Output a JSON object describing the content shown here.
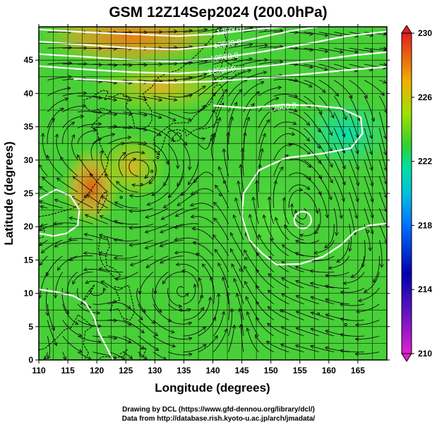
{
  "chart_data": {
    "type": "heatmap",
    "title": "GSM 12Z14Sep2024 (200.0hPa)",
    "xlabel": "Longitude (degrees)",
    "ylabel": "Latitude  (degrees)",
    "xlim": [
      110,
      170
    ],
    "ylim": [
      0,
      50
    ],
    "x_ticks": [
      110,
      115,
      120,
      125,
      130,
      135,
      140,
      145,
      150,
      155,
      160,
      165
    ],
    "y_ticks": [
      0,
      5,
      10,
      15,
      20,
      25,
      30,
      35,
      40,
      45
    ],
    "grid": true,
    "colorbar": {
      "min": 210,
      "max": 230,
      "ticks": [
        210,
        214,
        218,
        222,
        226,
        230
      ],
      "colors": [
        "#e020d0",
        "#0000b0",
        "#00b0ff",
        "#00e0b0",
        "#30d030",
        "#a0e000",
        "#f0b000",
        "#e02020"
      ]
    },
    "contours": [
      {
        "label": "12500.0",
        "lon": 152,
        "lat": 38,
        "color": "#ffffff"
      },
      {
        "label": "12500.0",
        "lon": 141.5,
        "lat": 43.5,
        "color": "#ffffff"
      },
      {
        "label": "12500.0",
        "lon": 142,
        "lat": 45.5,
        "color": "#ffffff"
      },
      {
        "label": "12500.0",
        "lon": 142.5,
        "lat": 47.5,
        "color": "#ffffff"
      },
      {
        "label": "12600.0",
        "lon": 143,
        "lat": 49.5,
        "color": "#ffffff"
      }
    ],
    "vortices": [
      {
        "name": "anticyclone",
        "lon": 155.5,
        "lat": 21
      },
      {
        "name": "anticyclone",
        "lon": 128,
        "lat": 28
      }
    ]
  },
  "credits": {
    "line1": "Drawing by DCL (https://www.gfd-dennou.org/library/dcl/)",
    "line2": "Data from http://database.rish.kyoto-u.ac.jp/arch/jmadata/"
  }
}
